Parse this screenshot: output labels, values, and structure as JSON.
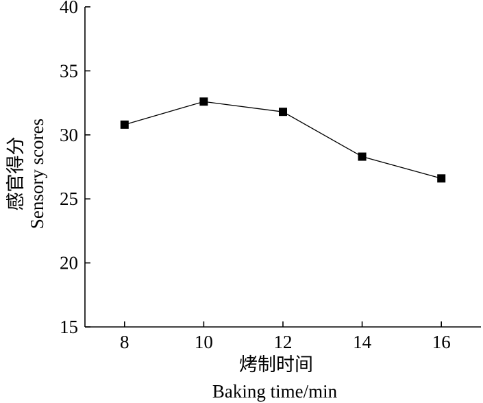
{
  "chart_data": {
    "type": "line",
    "title": "",
    "xlabel": "烤制时间",
    "xlabel_en": "Baking time/min",
    "ylabel": "感官得分",
    "ylabel_en": "Sensory scores",
    "xlim": [
      7,
      17
    ],
    "ylim": [
      15,
      40
    ],
    "xticks": [
      8,
      10,
      12,
      14,
      16
    ],
    "yticks": [
      15,
      20,
      25,
      30,
      35,
      40
    ],
    "grid": false,
    "marker": "square",
    "series": [
      {
        "x": [
          8,
          10,
          12,
          14,
          16
        ],
        "y": [
          30.8,
          32.6,
          31.8,
          28.3,
          26.6
        ]
      }
    ],
    "colors": {
      "line": "#000000",
      "marker": "#000000"
    }
  }
}
